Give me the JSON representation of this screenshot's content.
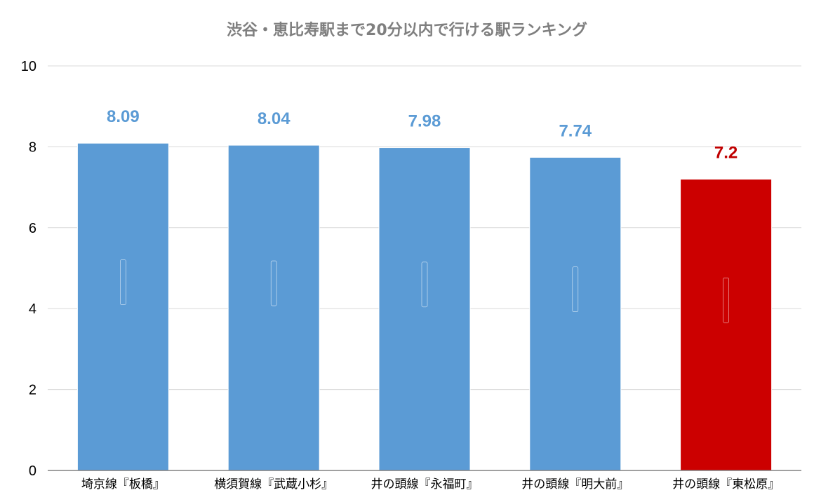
{
  "chart_data": {
    "type": "bar",
    "title": "渋谷・恵比寿駅まで20分以内で行ける駅ランキング",
    "xlabel": "",
    "ylabel": "",
    "ylim": [
      0,
      10
    ],
    "yticks": [
      0,
      2,
      4,
      6,
      8,
      10
    ],
    "grid": true,
    "legend": "none",
    "categories": [
      "埼京線『板橋』",
      "横須賀線『武蔵小杉』",
      "井の頭線『永福町』",
      "井の頭線『明大前』",
      "井の頭線『東松原』"
    ],
    "values": [
      8.09,
      8.04,
      7.98,
      7.74,
      7.2
    ],
    "data_labels": [
      "8.09",
      "8.04",
      "7.98",
      "7.74",
      "7.2"
    ],
    "bar_colors": [
      "#5b9bd5",
      "#5b9bd5",
      "#5b9bd5",
      "#5b9bd5",
      "#cc0000"
    ],
    "label_colors": [
      "#5b9bd5",
      "#5b9bd5",
      "#5b9bd5",
      "#5b9bd5",
      "#c00000"
    ]
  }
}
